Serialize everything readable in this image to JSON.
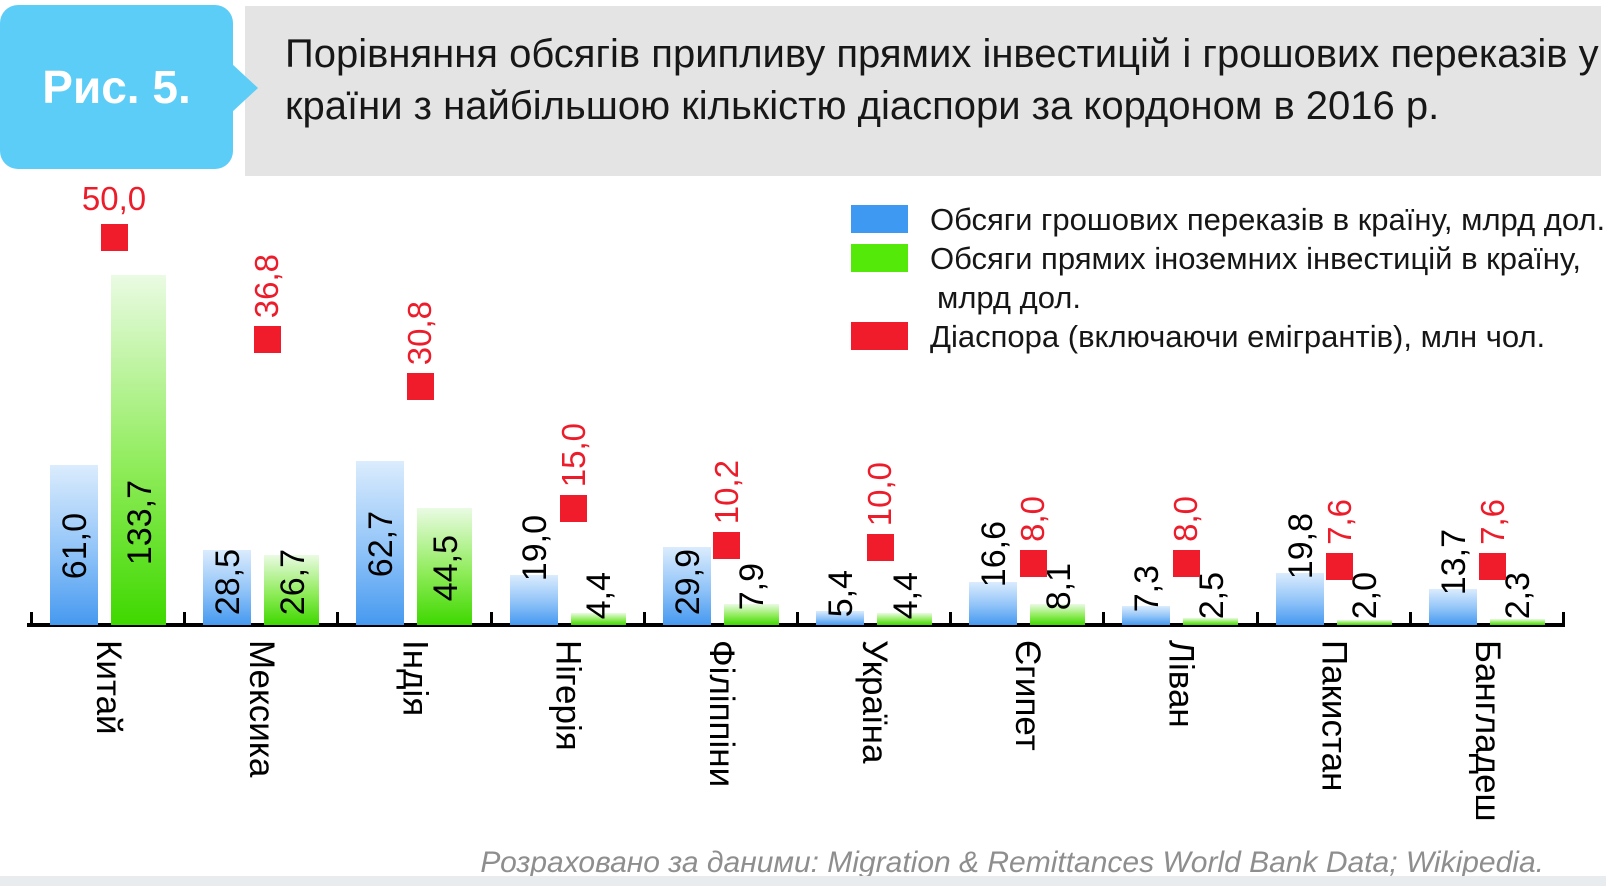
{
  "header": {
    "figure_tag": "Рис. 5.",
    "title_line1": "Порівняння обсягів припливу прямих інвестицій і грошових переказів у",
    "title_line2": "країни з найбільшою кількістю діаспори за кордоном в 2016 р."
  },
  "legend": {
    "items": [
      {
        "label": "Обсяги грошових переказів в країну, млрд дол.",
        "color": "#3e99f3"
      },
      {
        "label": "Обсяги прямих іноземних інвестицій в країну,",
        "label2": "млрд дол.",
        "color": "#55e90a"
      },
      {
        "label": "Діаспора (включаючи емігрантів), млн чол.",
        "color": "#f11c2b"
      }
    ]
  },
  "footer": {
    "source": "Розраховано за даними: Migration & Remittances World Bank Data; Wikipedia."
  },
  "chart_data": {
    "type": "bar",
    "title": "Порівняння обсягів припливу прямих інвестицій і грошових переказів у країни з найбільшою кількістю діаспори за кордоном в 2016 р.",
    "categories": [
      "Китай",
      "Мексика",
      "Індія",
      "Нігерія",
      "Філіппіни",
      "Україна",
      "Єгипет",
      "Ліван",
      "Пакистан",
      "Бангладеш"
    ],
    "series": [
      {
        "name": "Обсяги грошових переказів в країну, млрд дол.",
        "type": "bar",
        "color": "#3e99f3",
        "values": [
          61.0,
          28.5,
          62.7,
          19.0,
          29.9,
          5.4,
          16.6,
          7.3,
          19.8,
          13.7
        ]
      },
      {
        "name": "Обсяги прямих іноземних інвестицій в країну, млрд дол.",
        "type": "bar",
        "color": "#55e90a",
        "values": [
          133.7,
          26.7,
          44.5,
          4.4,
          7.9,
          4.4,
          8.1,
          2.5,
          2.0,
          2.3
        ]
      },
      {
        "name": "Діаспора (включаючи емігрантів), млн чол.",
        "type": "point",
        "color": "#f11c2b",
        "values": [
          50.0,
          36.8,
          30.8,
          15.0,
          10.2,
          10.0,
          8.0,
          8.0,
          7.6,
          7.6
        ]
      }
    ],
    "value_labels_visible": true,
    "value_label_format": "comma-decimal, one digit",
    "grid": false,
    "axes_visible": {
      "x": true,
      "y": false
    },
    "ylim_bars": [
      0,
      140
    ],
    "ylim_points": [
      0,
      52
    ],
    "legend_position": "top-right",
    "source": "Розраховано за даними: Migration & Remittances World Bank Data; Wikipedia."
  }
}
